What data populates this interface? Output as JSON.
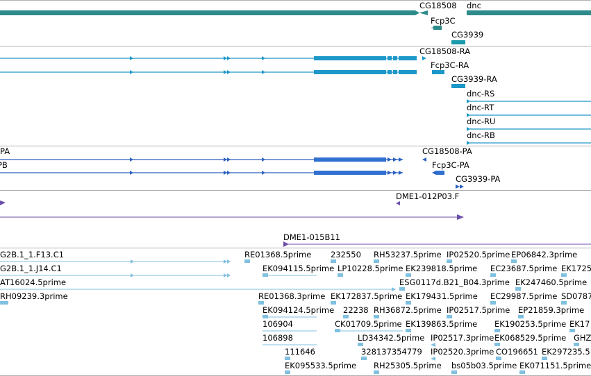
{
  "colors": {
    "gene": "#2e8b8b",
    "gene_bright": "#1a9aaa",
    "transcript": "#1e98c8",
    "protein": "#3070d0",
    "protein_line": "#2a60c0",
    "clone": "#6a4ea8",
    "est": "#80c0e0",
    "divider": "#b0b0b0"
  },
  "tracks": {
    "genes": {
      "labels": [
        {
          "id": "cg18508",
          "text": "CG18508"
        },
        {
          "id": "dnc",
          "text": "dnc"
        },
        {
          "id": "fcp3c",
          "text": "Fcp3C"
        },
        {
          "id": "cg3939",
          "text": "CG3939"
        }
      ]
    },
    "transcripts": {
      "labels": [
        {
          "id": "cg18508-ra",
          "text": "CG18508-RA"
        },
        {
          "id": "fcp3c-ra",
          "text": "Fcp3C-RA"
        },
        {
          "id": "cg3939-ra",
          "text": "CG3939-RA"
        },
        {
          "id": "dnc-rs",
          "text": "dnc-RS"
        },
        {
          "id": "dnc-rt",
          "text": "dnc-RT"
        },
        {
          "id": "dnc-ru",
          "text": "dnc-RU"
        },
        {
          "id": "dnc-rb",
          "text": "dnc-RB"
        }
      ]
    },
    "proteins": {
      "labels": [
        {
          "id": "pa-left",
          "text": "PA"
        },
        {
          "id": "pb-left",
          "text": "PB"
        },
        {
          "id": "cg18508-pa",
          "text": "CG18508-PA"
        },
        {
          "id": "fcp3c-pa",
          "text": "Fcp3C-PA"
        },
        {
          "id": "cg3939-pa",
          "text": "CG3939-PA"
        }
      ]
    },
    "clones": {
      "labels": [
        {
          "id": "dme1-012p03",
          "text": "DME1-012P03.F"
        },
        {
          "id": "dme1-015b11",
          "text": "DME1-015B11"
        }
      ]
    },
    "ests": {
      "labels": [
        {
          "id": "g2b-f13",
          "text": "G2B.1_1.F13.C1"
        },
        {
          "id": "re01368a",
          "text": "RE01368.5prime"
        },
        {
          "id": "e232550",
          "text": "232550"
        },
        {
          "id": "rh53237",
          "text": "RH53237.5prime"
        },
        {
          "id": "ip02520a",
          "text": "IP02520.5prime"
        },
        {
          "id": "ep06842",
          "text": "EP06842.3prime"
        },
        {
          "id": "g2b-j14",
          "text": "G2B.1_1.J14.C1"
        },
        {
          "id": "ek094115",
          "text": "EK094115.5prime"
        },
        {
          "id": "lp10228",
          "text": "LP10228.5prime"
        },
        {
          "id": "ek239818",
          "text": "EK239818.5prime"
        },
        {
          "id": "ec23687",
          "text": "EC23687.5prime"
        },
        {
          "id": "ek1725",
          "text": "EK1725"
        },
        {
          "id": "at16024",
          "text": "AT16024.5prime"
        },
        {
          "id": "esg0117d",
          "text": "ESG0117d.B21_B04.3prime"
        },
        {
          "id": "ek247460",
          "text": "EK247460.5prime"
        },
        {
          "id": "rh09239",
          "text": "RH09239.3prime"
        },
        {
          "id": "re01368b",
          "text": "RE01368.3prime"
        },
        {
          "id": "ek172837",
          "text": "EK172837.5prime"
        },
        {
          "id": "ek17943",
          "text": "EK17943"
        },
        {
          "id": "ek17943b",
          "text": "1.5prime"
        },
        {
          "id": "ec29987",
          "text": "EC29987.5prime"
        },
        {
          "id": "sd0787",
          "text": "SD0787"
        },
        {
          "id": "ek094124",
          "text": "EK094124.5prime"
        },
        {
          "id": "e22238",
          "text": "22238"
        },
        {
          "id": "rh36872",
          "text": "RH36872.5prime"
        },
        {
          "id": "ip02517a",
          "text": "IP02517.5prime"
        },
        {
          "id": "ep21859",
          "text": "EP21859.3prime"
        },
        {
          "id": "e106904",
          "text": "106904"
        },
        {
          "id": "ck01709",
          "text": "CK01709.5prime"
        },
        {
          "id": "ek139863",
          "text": "EK139863.5prime"
        },
        {
          "id": "ek190253",
          "text": "EK190253.5prime"
        },
        {
          "id": "ek17b",
          "text": "EK17"
        },
        {
          "id": "e106898",
          "text": "106898"
        },
        {
          "id": "ld34342",
          "text": "LD34342.5prime"
        },
        {
          "id": "ip02517b",
          "text": "IP02517.3prime"
        },
        {
          "id": "ek068529",
          "text": "EK068529.5prime"
        },
        {
          "id": "ghz",
          "text": "GHZ"
        },
        {
          "id": "e111646",
          "text": "111646"
        },
        {
          "id": "e328137",
          "text": "328137354779"
        },
        {
          "id": "ip02520b",
          "text": "IP02520.3prime"
        },
        {
          "id": "co19665",
          "text": "CO196651"
        },
        {
          "id": "ek297235",
          "text": "EK297235.5"
        },
        {
          "id": "ek095533",
          "text": "EK095533.5prime"
        },
        {
          "id": "rh25305",
          "text": "RH25305.5prime"
        },
        {
          "id": "bs05b03",
          "text": "bs05b03.5prime"
        },
        {
          "id": "ek071151",
          "text": "EK071151.5prime"
        }
      ]
    }
  }
}
